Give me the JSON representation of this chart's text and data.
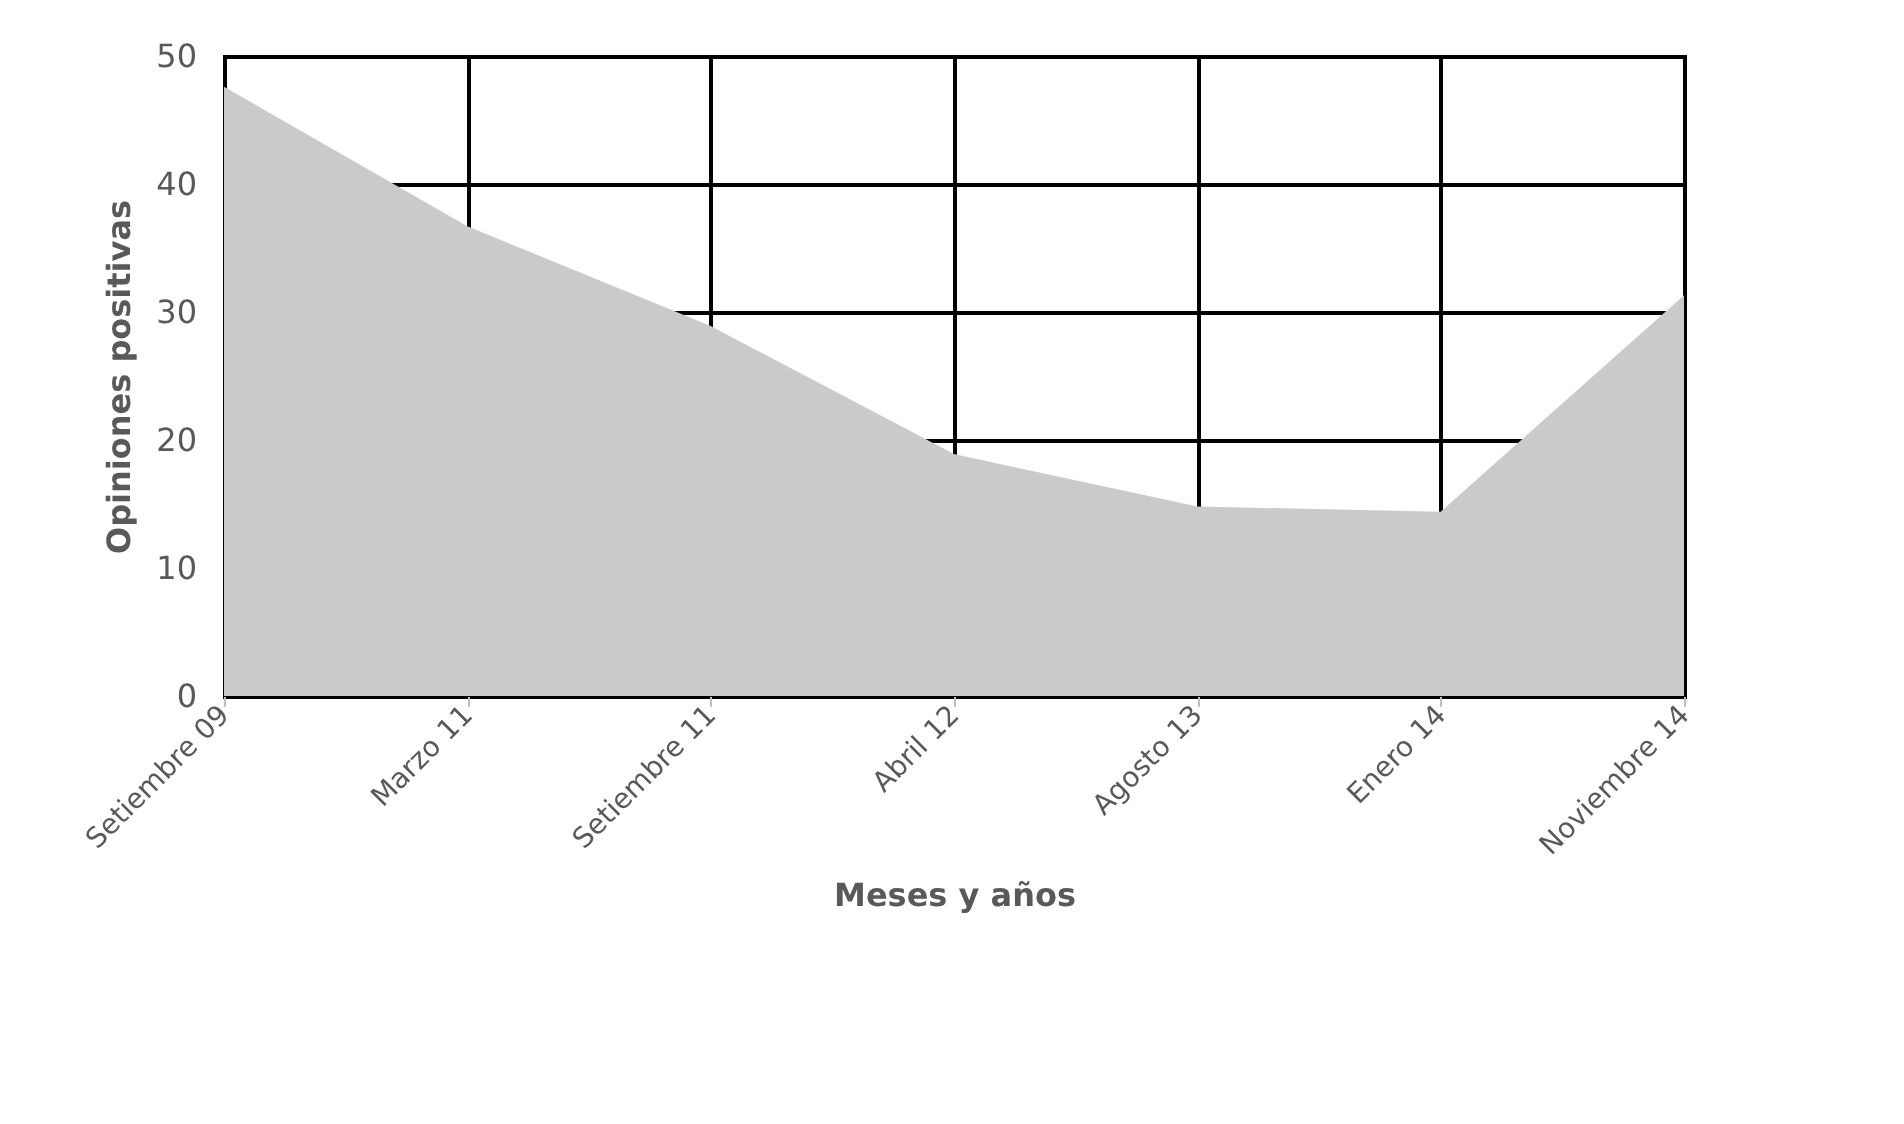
{
  "chart_data": {
    "type": "area",
    "xlabel": "Meses y años",
    "ylabel": "Opiniones positivas",
    "categories": [
      "Setiembre 09",
      "Marzo 11",
      "Setiembre 11",
      "Abril 12",
      "Agosto 13",
      "Enero 14",
      "Noviembre 14"
    ],
    "series": [
      {
        "color": "#cbcacb",
        "values": [
          47.6,
          36.7,
          28.9,
          18.9,
          14.8,
          14.4,
          31.3
        ]
      }
    ],
    "ylim": [
      0,
      50
    ],
    "yticks": [
      0,
      10,
      20,
      30,
      40,
      50
    ],
    "grid": true
  }
}
